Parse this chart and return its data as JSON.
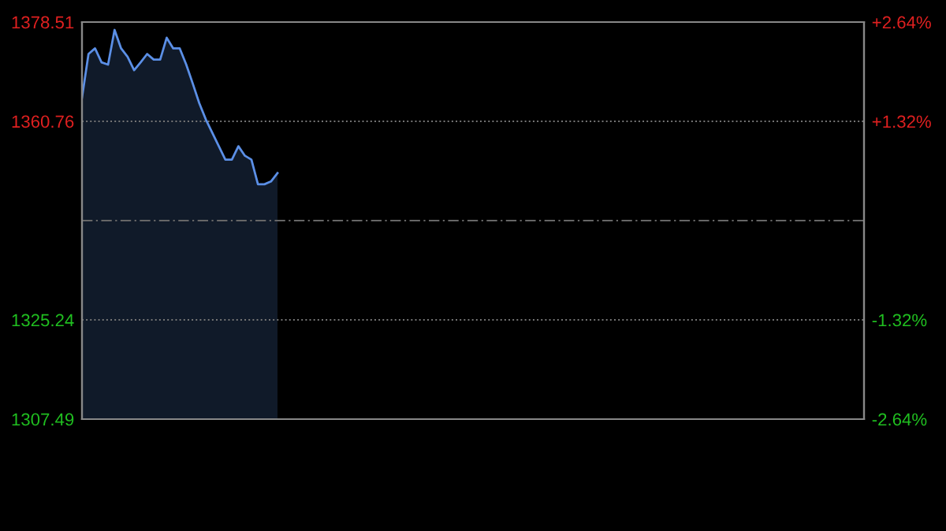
{
  "chart_data": {
    "type": "area",
    "categories": [
      null,
      null,
      null,
      null,
      null,
      null,
      null,
      null,
      null,
      null,
      null,
      null,
      null,
      null,
      null,
      null,
      null,
      null,
      null,
      null,
      null,
      null,
      null,
      null,
      null,
      null,
      null,
      null,
      null,
      null,
      null,
      null,
      null,
      null,
      null,
      null,
      null,
      null,
      null,
      null,
      null,
      null,
      null,
      null,
      null,
      null,
      null,
      null,
      null,
      null,
      null,
      null,
      null,
      null,
      null,
      null,
      null,
      null,
      null,
      null,
      null,
      null,
      null,
      null,
      null,
      null,
      null,
      null,
      null,
      null,
      null,
      null,
      null,
      null,
      null,
      null,
      null,
      null,
      null,
      null,
      null,
      null,
      null,
      null,
      null,
      null,
      null,
      null,
      null,
      null,
      null,
      null,
      null,
      null,
      null,
      null,
      null,
      null,
      null,
      null,
      null,
      null,
      null,
      null,
      null,
      null,
      null,
      null,
      null,
      null,
      null,
      null,
      null,
      null,
      null,
      null,
      null,
      null,
      null,
      null,
      null
    ],
    "series": [
      {
        "color": "#5b8fe6",
        "values": [
          1365.0,
          1372.8,
          1373.8,
          1371.3,
          1370.9,
          1377.1,
          1373.8,
          1372.3,
          1369.9,
          1371.3,
          1372.8,
          1371.8,
          1371.8,
          1375.7,
          1373.8,
          1373.8,
          1370.9,
          1367.5,
          1364.0,
          1361.1,
          1358.7,
          1356.3,
          1353.9,
          1353.9,
          1356.3,
          1354.6,
          1353.9,
          1349.5,
          1349.5,
          1350.0,
          1351.5,
          null,
          null,
          null,
          null,
          null,
          null,
          null,
          null,
          null,
          null,
          null,
          null,
          null,
          null,
          null,
          null,
          null,
          null,
          null,
          null,
          null,
          null,
          null,
          null,
          null,
          null,
          null,
          null,
          null,
          null,
          null,
          null,
          null,
          null,
          null,
          null,
          null,
          null,
          null,
          null,
          null,
          null,
          null,
          null,
          null,
          null,
          null,
          null,
          null,
          null,
          null,
          null,
          null,
          null,
          null,
          null,
          null,
          null,
          null,
          null,
          null,
          null,
          null,
          null,
          null,
          null,
          null,
          null,
          null,
          null,
          null,
          null,
          null,
          null,
          null,
          null,
          null,
          null,
          null,
          null,
          null,
          null,
          null,
          null,
          null,
          null,
          null,
          null,
          null,
          null
        ]
      }
    ],
    "ylim": [
      1307.49,
      1378.51
    ],
    "yticks": [
      1307.49,
      1325.24,
      1360.76,
      1378.51
    ],
    "y2lim": [
      -2.64,
      2.64
    ],
    "y2ticks": [
      {
        "value": -2.64,
        "label": "-2.64%"
      },
      {
        "value": -1.32,
        "label": "-1.32%"
      },
      {
        "value": 1.32,
        "label": "+1.32%"
      },
      {
        "value": 2.64,
        "label": "+2.64%"
      }
    ],
    "ref_lines": [
      {
        "axis": "y",
        "value": 1343.0,
        "color": "#666666",
        "line_style": "dashed"
      }
    ],
    "grid": "y",
    "tick_labels": "y",
    "legend": false
  }
}
